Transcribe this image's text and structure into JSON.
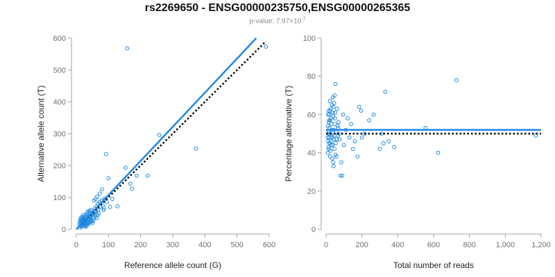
{
  "header": {
    "title": "rs2269650 - ENSG00000235750,ENSG00000265365",
    "pvalue_label": "p-value: ",
    "pvalue_mantissa": "7.97",
    "pvalue_times": "×10",
    "pvalue_exponent": "-7"
  },
  "colors": {
    "points": "#1e88e5",
    "fit": "#1e88e5",
    "reference": "#000000",
    "axis": "#a0a0a0",
    "tick_text": "#6e6e6e"
  },
  "chart_data": [
    {
      "type": "scatter",
      "xlabel": "Reference allele count (G)",
      "ylabel": "Alternative allele count (T)",
      "xlim": [
        0,
        600
      ],
      "ylim": [
        0,
        600
      ],
      "xticks": [
        0,
        100,
        200,
        300,
        400,
        500,
        600
      ],
      "yticks": [
        0,
        100,
        200,
        300,
        400,
        500,
        600
      ],
      "xtick_labels": [
        "0",
        "100",
        "200",
        "300",
        "400",
        "500",
        "600"
      ],
      "ytick_labels": [
        "0",
        "100",
        "200",
        "300",
        "400",
        "500",
        "600"
      ],
      "fit_line": {
        "x": [
          0,
          560
        ],
        "y": [
          0,
          600
        ]
      },
      "reference_line": {
        "x": [
          0,
          590
        ],
        "y": [
          0,
          590
        ]
      },
      "points": [
        [
          158,
          568
        ],
        [
          590,
          573
        ],
        [
          92,
          236
        ],
        [
          372,
          253
        ],
        [
          258,
          296
        ],
        [
          153,
          193
        ],
        [
          100,
          160
        ],
        [
          222,
          168
        ],
        [
          188,
          168
        ],
        [
          168,
          143
        ],
        [
          173,
          127
        ],
        [
          128,
          72
        ],
        [
          88,
          96
        ],
        [
          80,
          125
        ],
        [
          73,
          112
        ],
        [
          65,
          102
        ],
        [
          60,
          95
        ],
        [
          55,
          90
        ],
        [
          75,
          70
        ],
        [
          85,
          60
        ],
        [
          12,
          5
        ],
        [
          14,
          10
        ],
        [
          16,
          12
        ],
        [
          18,
          8
        ],
        [
          20,
          15
        ],
        [
          22,
          18
        ],
        [
          24,
          12
        ],
        [
          26,
          20
        ],
        [
          28,
          22
        ],
        [
          30,
          25
        ],
        [
          32,
          28
        ],
        [
          34,
          18
        ],
        [
          36,
          30
        ],
        [
          38,
          35
        ],
        [
          40,
          32
        ],
        [
          42,
          40
        ],
        [
          44,
          38
        ],
        [
          46,
          42
        ],
        [
          48,
          45
        ],
        [
          50,
          48
        ],
        [
          52,
          36
        ],
        [
          54,
          50
        ],
        [
          56,
          44
        ],
        [
          58,
          55
        ],
        [
          60,
          40
        ],
        [
          62,
          58
        ],
        [
          64,
          35
        ],
        [
          66,
          45
        ],
        [
          68,
          60
        ],
        [
          70,
          50
        ],
        [
          15,
          25
        ],
        [
          17,
          30
        ],
        [
          19,
          22
        ],
        [
          21,
          28
        ],
        [
          23,
          35
        ],
        [
          25,
          40
        ],
        [
          27,
          32
        ],
        [
          29,
          38
        ],
        [
          31,
          45
        ],
        [
          33,
          50
        ],
        [
          35,
          55
        ],
        [
          37,
          42
        ],
        [
          39,
          48
        ],
        [
          41,
          58
        ],
        [
          43,
          52
        ],
        [
          45,
          60
        ],
        [
          47,
          30
        ],
        [
          49,
          25
        ],
        [
          51,
          20
        ],
        [
          53,
          28
        ],
        [
          13,
          18
        ],
        [
          11,
          22
        ],
        [
          10,
          15
        ],
        [
          12,
          30
        ],
        [
          14,
          35
        ],
        [
          16,
          28
        ],
        [
          18,
          40
        ],
        [
          20,
          33
        ],
        [
          22,
          45
        ],
        [
          24,
          27
        ],
        [
          26,
          10
        ],
        [
          28,
          14
        ],
        [
          30,
          8
        ],
        [
          32,
          16
        ],
        [
          34,
          12
        ],
        [
          36,
          20
        ],
        [
          38,
          24
        ],
        [
          40,
          18
        ],
        [
          42,
          26
        ],
        [
          44,
          22
        ],
        [
          57,
          65
        ],
        [
          63,
          72
        ],
        [
          67,
          80
        ],
        [
          72,
          85
        ],
        [
          78,
          90
        ],
        [
          82,
          75
        ],
        [
          86,
          66
        ],
        [
          95,
          85
        ],
        [
          105,
          70
        ],
        [
          112,
          95
        ]
      ]
    },
    {
      "type": "scatter",
      "xlabel": "Total number of reads",
      "ylabel": "Percentage alternative (T)",
      "xlim": [
        0,
        1200
      ],
      "ylim": [
        0,
        100
      ],
      "xticks": [
        0,
        200,
        400,
        600,
        800,
        1000,
        1200
      ],
      "yticks": [
        0,
        20,
        40,
        60,
        80,
        100
      ],
      "xtick_labels": [
        "0",
        "200",
        "400",
        "600",
        "800",
        "1,000",
        "1,200"
      ],
      "ytick_labels": [
        "0",
        "20",
        "40",
        "60",
        "80",
        "100"
      ],
      "fit_line": {
        "y": 52
      },
      "reference_line": {
        "y": 50
      },
      "points": [
        [
          728,
          78
        ],
        [
          330,
          72
        ],
        [
          1170,
          49
        ],
        [
          555,
          53
        ],
        [
          625,
          40
        ],
        [
          380,
          43
        ],
        [
          350,
          46
        ],
        [
          320,
          45
        ],
        [
          310,
          50
        ],
        [
          300,
          42
        ],
        [
          265,
          60
        ],
        [
          240,
          57
        ],
        [
          215,
          50
        ],
        [
          200,
          48
        ],
        [
          195,
          62
        ],
        [
          185,
          64
        ],
        [
          175,
          38
        ],
        [
          160,
          46
        ],
        [
          150,
          42
        ],
        [
          140,
          55
        ],
        [
          130,
          48
        ],
        [
          120,
          58
        ],
        [
          110,
          52
        ],
        [
          100,
          44
        ],
        [
          95,
          60
        ],
        [
          90,
          28
        ],
        [
          80,
          28
        ],
        [
          85,
          35
        ],
        [
          75,
          47
        ],
        [
          70,
          56
        ],
        [
          62,
          63
        ],
        [
          58,
          38
        ],
        [
          52,
          76
        ],
        [
          48,
          70
        ],
        [
          45,
          66
        ],
        [
          42,
          33
        ],
        [
          40,
          59
        ],
        [
          38,
          61
        ],
        [
          36,
          44
        ],
        [
          34,
          48
        ],
        [
          32,
          52
        ],
        [
          30,
          55
        ],
        [
          28,
          46
        ],
        [
          26,
          63
        ],
        [
          25,
          41
        ],
        [
          24,
          57
        ],
        [
          23,
          50
        ],
        [
          22,
          38
        ],
        [
          21,
          67
        ],
        [
          20,
          45
        ],
        [
          19,
          53
        ],
        [
          18,
          60
        ],
        [
          17,
          48
        ],
        [
          16,
          42
        ],
        [
          15,
          56
        ],
        [
          14,
          62
        ],
        [
          13,
          50
        ],
        [
          12,
          46
        ],
        [
          11,
          54
        ],
        [
          10,
          40
        ],
        [
          44,
          52
        ],
        [
          46,
          49
        ],
        [
          50,
          58
        ],
        [
          54,
          45
        ],
        [
          56,
          51
        ],
        [
          60,
          47
        ],
        [
          64,
          54
        ],
        [
          66,
          49
        ],
        [
          68,
          53
        ],
        [
          72,
          50
        ],
        [
          33,
          65
        ],
        [
          35,
          37
        ],
        [
          37,
          69
        ],
        [
          39,
          35
        ],
        [
          41,
          64
        ],
        [
          43,
          47
        ],
        [
          47,
          42
        ],
        [
          49,
          55
        ],
        [
          51,
          61
        ],
        [
          53,
          39
        ],
        [
          27,
          58
        ],
        [
          29,
          44
        ],
        [
          31,
          49
        ],
        [
          23,
          62
        ],
        [
          19,
          45
        ],
        [
          17,
          57
        ],
        [
          15,
          51
        ],
        [
          13,
          43
        ],
        [
          11,
          60
        ],
        [
          9,
          48
        ]
      ]
    }
  ]
}
